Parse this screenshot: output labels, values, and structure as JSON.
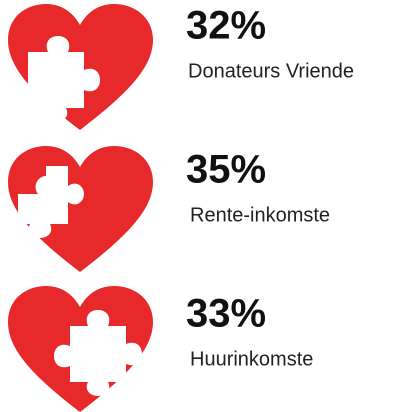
{
  "items": [
    {
      "value": "32%",
      "label": "Donateurs Vriende"
    },
    {
      "value": "35%",
      "label": "Rente-inkomste"
    },
    {
      "value": "33%",
      "label": "Huurinkomste"
    }
  ]
}
